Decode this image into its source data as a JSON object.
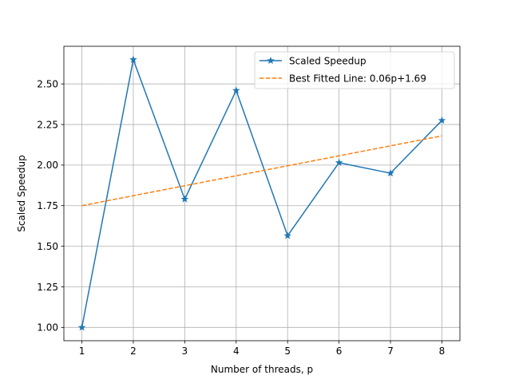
{
  "chart_data": {
    "type": "line",
    "title": "",
    "xlabel": "Number of threads, p",
    "ylabel": "Scaled Speedup",
    "xlim": [
      0.65,
      8.35
    ],
    "ylim": [
      0.918,
      2.732
    ],
    "x_ticks": [
      1,
      2,
      3,
      4,
      5,
      6,
      7,
      8
    ],
    "y_ticks": [
      1.0,
      1.25,
      1.5,
      1.75,
      2.0,
      2.25,
      2.5
    ],
    "x_tick_labels": [
      "1",
      "2",
      "3",
      "4",
      "5",
      "6",
      "7",
      "8"
    ],
    "y_tick_labels": [
      "1.00",
      "1.25",
      "1.50",
      "1.75",
      "2.00",
      "2.25",
      "2.50"
    ],
    "grid": true,
    "legend_position": "upper right",
    "series": [
      {
        "name": "Scaled Speedup",
        "color": "#1f77b4",
        "style": "solid",
        "marker": "star",
        "x": [
          1,
          2,
          3,
          4,
          5,
          6,
          7,
          8
        ],
        "values": [
          1.0,
          2.65,
          1.79,
          2.46,
          1.565,
          2.015,
          1.95,
          2.275
        ]
      },
      {
        "name": "Best Fitted Line: 0.06p+1.69",
        "color": "#ff7f0e",
        "style": "dashed",
        "marker": "none",
        "x": [
          1,
          8
        ],
        "values": [
          1.75,
          2.18
        ]
      }
    ]
  }
}
